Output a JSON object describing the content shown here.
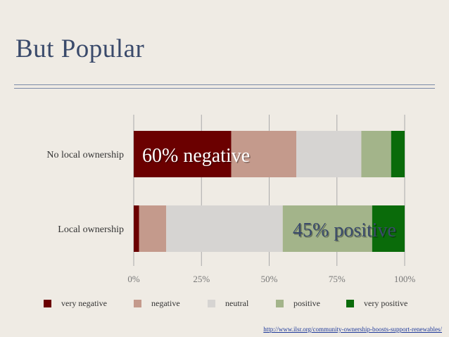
{
  "slide": {
    "title": "But Popular",
    "source_link": "http://www.ilsr.org/community-ownership-boosts-support-renewables/"
  },
  "chart_data": {
    "type": "bar",
    "orientation": "horizontal",
    "stacked": true,
    "categories": [
      "No local ownership",
      "Local ownership"
    ],
    "series": [
      {
        "name": "very negative",
        "color": "#6b0000",
        "values": [
          36,
          2
        ]
      },
      {
        "name": "negative",
        "color": "#c49a8c",
        "values": [
          24,
          10
        ]
      },
      {
        "name": "neutral",
        "color": "#d6d4d2",
        "values": [
          24,
          43
        ]
      },
      {
        "name": "positive",
        "color": "#a3b48a",
        "values": [
          11,
          33
        ]
      },
      {
        "name": "very positive",
        "color": "#0a6b0a",
        "values": [
          5,
          12
        ]
      }
    ],
    "xlim": [
      0,
      100
    ],
    "x_ticks": [
      "0%",
      "25%",
      "50%",
      "75%",
      "100%"
    ],
    "grid": true,
    "legend_position": "bottom",
    "annotations": [
      {
        "text": "60% negative",
        "category": "No local ownership",
        "color": "#ffffff"
      },
      {
        "text": "45% positive",
        "category": "Local ownership",
        "color": "#3a4a6b"
      }
    ]
  }
}
